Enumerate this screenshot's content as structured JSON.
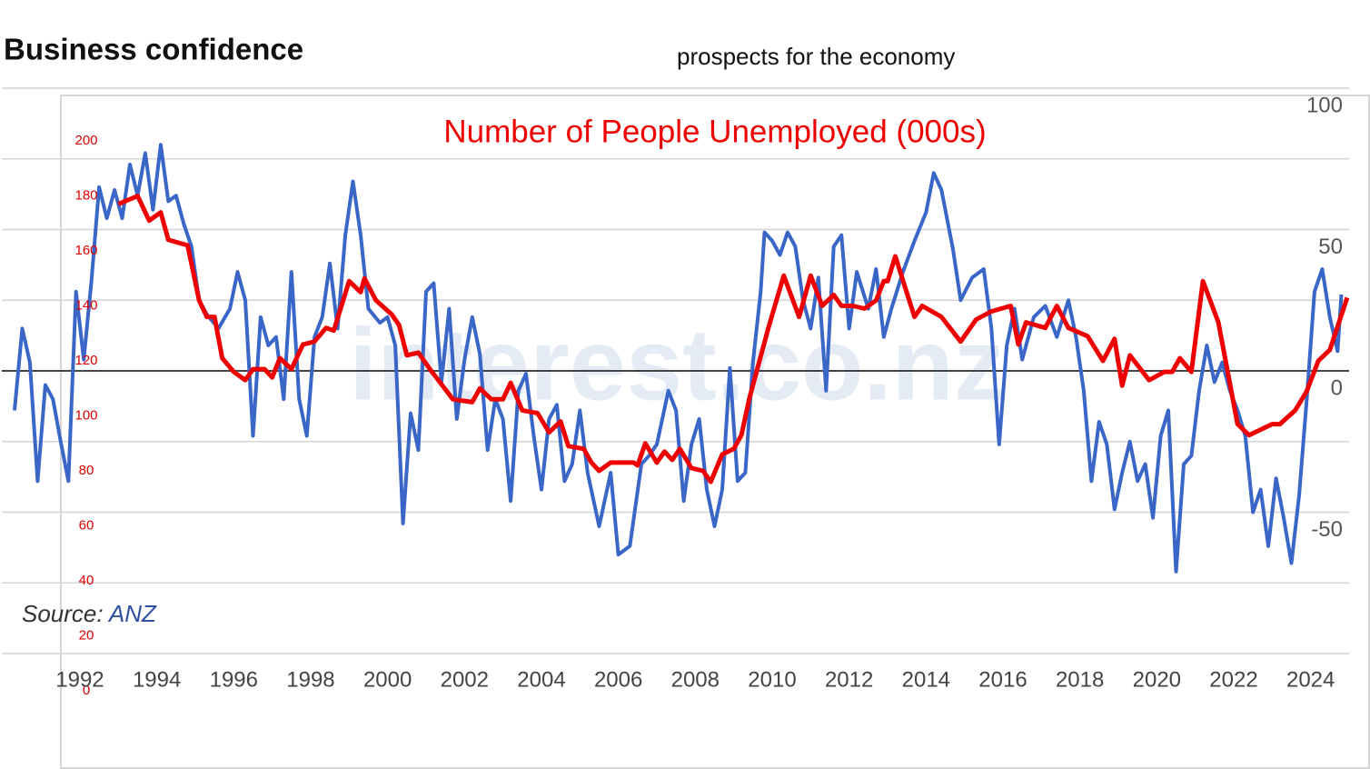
{
  "chart_data": {
    "type": "line",
    "title": "Business confidence",
    "subtitle": "prospects for the economy",
    "annotation": "Number of People Unemployed (000s)",
    "watermark": "interest.co.nz",
    "source": {
      "label": "Source:",
      "name": "ANZ"
    },
    "xlim": [
      1990.3,
      2025.0
    ],
    "xticks": [
      1992,
      1994,
      1996,
      1998,
      2000,
      2002,
      2004,
      2006,
      2008,
      2010,
      2012,
      2014,
      2016,
      2018,
      2020,
      2022,
      2024
    ],
    "ylim": [
      -100,
      100
    ],
    "yticks": [
      -50,
      0,
      50,
      100
    ],
    "ygrid": [
      -100,
      -75,
      -50,
      -25,
      0,
      25,
      50,
      75,
      100
    ],
    "y2lim": [
      0,
      200
    ],
    "y2ticks": [
      0,
      20,
      40,
      60,
      80,
      100,
      120,
      140,
      160,
      180,
      200
    ],
    "grid": true,
    "series": [
      {
        "color": "#3a66c8",
        "x": [
          1990.3,
          1990.5,
          1990.7,
          1990.9,
          1991.1,
          1991.3,
          1991.5,
          1991.7,
          1991.9,
          1992.1,
          1992.3,
          1992.5,
          1992.7,
          1992.9,
          1993.1,
          1993.3,
          1993.5,
          1993.7,
          1993.9,
          1994.1,
          1994.3,
          1994.5,
          1994.7,
          1994.9,
          1995.1,
          1995.3,
          1995.6,
          1995.9,
          1996.1,
          1996.3,
          1996.5,
          1996.7,
          1996.9,
          1997.1,
          1997.3,
          1997.5,
          1997.7,
          1997.9,
          1998.1,
          1998.3,
          1998.5,
          1998.7,
          1998.9,
          1999.1,
          1999.3,
          1999.5,
          1999.8,
          2000.0,
          2000.2,
          2000.4,
          2000.6,
          2000.8,
          2001.0,
          2001.2,
          2001.4,
          2001.6,
          2001.8,
          2002.0,
          2002.2,
          2002.4,
          2002.6,
          2002.8,
          2003.0,
          2003.2,
          2003.4,
          2003.6,
          2003.8,
          2004.0,
          2004.2,
          2004.4,
          2004.6,
          2004.8,
          2005.0,
          2005.2,
          2005.5,
          2005.8,
          2006.0,
          2006.3,
          2006.6,
          2006.8,
          2007.0,
          2007.3,
          2007.5,
          2007.7,
          2007.9,
          2008.1,
          2008.3,
          2008.5,
          2008.7,
          2008.9,
          2009.1,
          2009.3,
          2009.5,
          2009.7,
          2009.8,
          2010.0,
          2010.2,
          2010.4,
          2010.6,
          2010.8,
          2011.0,
          2011.2,
          2011.4,
          2011.6,
          2011.8,
          2012.0,
          2012.2,
          2012.5,
          2012.7,
          2012.9,
          2013.1,
          2013.4,
          2013.7,
          2014.0,
          2014.2,
          2014.4,
          2014.7,
          2014.9,
          2015.2,
          2015.5,
          2015.7,
          2015.9,
          2016.1,
          2016.3,
          2016.5,
          2016.8,
          2017.1,
          2017.4,
          2017.7,
          2017.9,
          2018.1,
          2018.3,
          2018.5,
          2018.7,
          2018.9,
          2019.1,
          2019.3,
          2019.5,
          2019.7,
          2019.9,
          2020.1,
          2020.3,
          2020.5,
          2020.7,
          2020.9,
          2021.1,
          2021.3,
          2021.5,
          2021.7,
          2021.9,
          2022.1,
          2022.3,
          2022.5,
          2022.7,
          2022.9,
          2023.1,
          2023.3,
          2023.5,
          2023.7,
          2023.9,
          2024.1,
          2024.3,
          2024.5,
          2024.7,
          2024.8
        ],
        "values": [
          -14,
          15,
          3,
          -39,
          -5,
          -10,
          -25,
          -39,
          28,
          4,
          32,
          65,
          54,
          64,
          54,
          73,
          62,
          77,
          57,
          80,
          60,
          62,
          52,
          44,
          25,
          20,
          15,
          22,
          35,
          25,
          -23,
          19,
          9,
          12,
          -10,
          35,
          -10,
          -23,
          12,
          19,
          38,
          15,
          48,
          67,
          48,
          22,
          17,
          19,
          9,
          -54,
          -15,
          -28,
          28,
          31,
          -4,
          22,
          -17,
          4,
          19,
          6,
          -28,
          -10,
          -17,
          -46,
          -7,
          -1,
          -23,
          -42,
          -17,
          -12,
          -39,
          -33,
          -14,
          -36,
          -55,
          -36,
          -65,
          -62,
          -33,
          -30,
          -26,
          -7,
          -14,
          -46,
          -26,
          -17,
          -42,
          -55,
          -42,
          1,
          -39,
          -36,
          3,
          28,
          49,
          46,
          41,
          49,
          44,
          25,
          15,
          33,
          -7,
          44,
          48,
          15,
          35,
          22,
          36,
          12,
          22,
          35,
          46,
          56,
          70,
          64,
          43,
          25,
          33,
          36,
          15,
          -26,
          9,
          22,
          4,
          19,
          23,
          12,
          25,
          12,
          -7,
          -39,
          -18,
          -26,
          -49,
          -36,
          -25,
          -39,
          -33,
          -52,
          -23,
          -14,
          -71,
          -33,
          -30,
          -7,
          9,
          -4,
          3,
          -7,
          -14,
          -23,
          -50,
          -42,
          -62,
          -38,
          -52,
          -68,
          -44,
          -10,
          28,
          36,
          19,
          7,
          27
        ]
      },
      {
        "color": "#ee0000",
        "axis": "y2",
        "x": [
          1993.0,
          1993.5,
          1993.8,
          1994.1,
          1994.3,
          1994.8,
          1995.1,
          1995.3,
          1995.5,
          1995.7,
          1996.0,
          1996.3,
          1996.5,
          1996.8,
          1997.0,
          1997.2,
          1997.5,
          1997.8,
          1998.1,
          1998.4,
          1998.6,
          1999.0,
          1999.3,
          1999.4,
          1999.7,
          2000.1,
          2000.3,
          2000.5,
          2000.8,
          2001.1,
          2001.7,
          2002.2,
          2002.4,
          2002.7,
          2003.0,
          2003.2,
          2003.5,
          2003.9,
          2004.2,
          2004.5,
          2004.7,
          2005.1,
          2005.3,
          2005.5,
          2005.8,
          2006.4,
          2006.5,
          2006.7,
          2007.0,
          2007.2,
          2007.4,
          2007.6,
          2007.9,
          2008.2,
          2008.4,
          2008.7,
          2009.0,
          2009.2,
          2009.4,
          2009.9,
          2010.3,
          2010.7,
          2011.0,
          2011.3,
          2011.6,
          2011.8,
          2012.1,
          2012.4,
          2012.7,
          2012.9,
          2013.0,
          2013.2,
          2013.7,
          2013.9,
          2014.4,
          2014.9,
          2015.3,
          2015.7,
          2016.2,
          2016.4,
          2016.6,
          2017.1,
          2017.4,
          2017.7,
          2018.2,
          2018.6,
          2018.9,
          2019.1,
          2019.3,
          2019.8,
          2020.2,
          2020.4,
          2020.6,
          2020.9,
          2021.2,
          2021.6,
          2022.1,
          2022.4,
          2023.0,
          2023.2,
          2023.6,
          2023.9,
          2024.2,
          2024.5,
          2024.95
        ],
        "values": [
          177,
          180,
          171,
          174,
          164,
          162,
          142,
          136,
          136,
          121,
          116,
          113,
          117,
          117,
          114,
          121,
          117,
          126,
          127,
          132,
          131,
          149,
          145,
          150,
          142,
          137,
          133,
          122,
          123,
          117,
          106,
          105,
          110,
          106,
          106,
          112,
          102,
          101,
          94,
          98,
          89,
          88,
          83,
          80,
          83,
          83,
          82,
          90,
          83,
          87,
          84,
          88,
          81,
          80,
          76,
          86,
          88,
          93,
          106,
          132,
          151,
          136,
          151,
          140,
          144,
          140,
          140,
          139,
          142,
          149,
          149,
          158,
          136,
          140,
          136,
          127,
          135,
          138,
          140,
          126,
          134,
          132,
          140,
          132,
          129,
          120,
          128,
          111,
          122,
          113,
          116,
          116,
          121,
          116,
          149,
          134,
          97,
          93,
          97,
          97,
          102,
          109,
          120,
          124,
          143
        ]
      }
    ]
  }
}
